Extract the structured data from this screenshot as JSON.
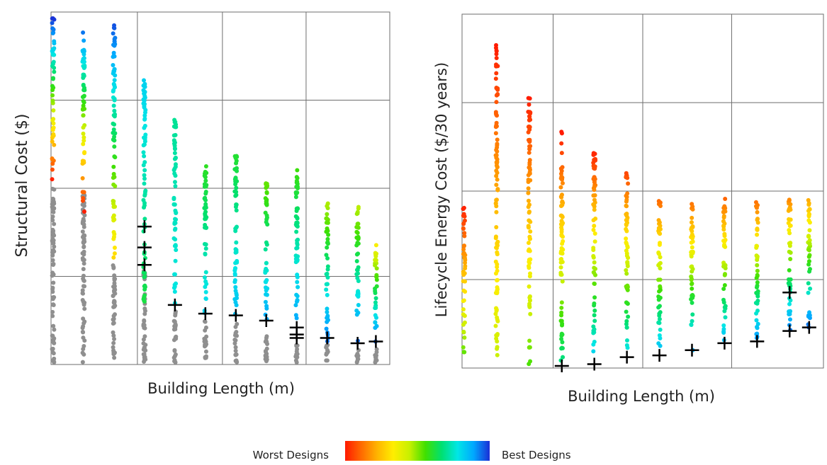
{
  "colors": {
    "worst": "#ff2a00",
    "best": "#1a2fd6",
    "excluded": "#8f8f8f",
    "grid": "#6e6e6e",
    "marker": "#000000"
  },
  "colormap": [
    "#ff1a00",
    "#ff6a00",
    "#ffb400",
    "#ffee00",
    "#c8f000",
    "#40e000",
    "#00e070",
    "#00e6e6",
    "#00a8ff",
    "#1a2fd6"
  ],
  "legend": {
    "worst_label": "Worst Designs",
    "best_label": "Best Designs"
  },
  "chart_data": [
    {
      "type": "scatter",
      "title": "",
      "xlabel": "Building Length (m)",
      "ylabel": "Structural Cost ($)",
      "grid": true,
      "x_categories": 11,
      "columns": [
        {
          "x": 1,
          "color_top": 1.0,
          "color_bottom": 0.0,
          "top": 0.99,
          "color_floor": 0.52,
          "bottom": 0.0,
          "gray_max": 0.5,
          "gray_min": 0.0,
          "markers": []
        },
        {
          "x": 2,
          "color_top": 0.94,
          "color_bottom": 0.0,
          "top": 0.95,
          "color_floor": 0.43,
          "bottom": 0.0,
          "gray_max": 0.5,
          "gray_min": 0.0,
          "markers": []
        },
        {
          "x": 3,
          "color_top": 0.97,
          "color_bottom": 0.28,
          "top": 0.97,
          "color_floor": 0.29,
          "bottom": 0.0,
          "gray_max": 0.28,
          "gray_min": 0.0,
          "markers": []
        },
        {
          "x": 4,
          "color_top": 0.82,
          "color_bottom": 0.62,
          "top": 0.82,
          "color_floor": 0.17,
          "bottom": 0.0,
          "gray_max": 0.27,
          "gray_min": 0.0,
          "markers": [
            0.39,
            0.33,
            0.28
          ]
        },
        {
          "x": 5,
          "color_top": 0.7,
          "color_bottom": 0.78,
          "top": 0.7,
          "color_floor": 0.17,
          "bottom": 0.0,
          "gray_max": 0.16,
          "gray_min": 0.0,
          "markers": [
            0.165
          ]
        },
        {
          "x": 6,
          "color_top": 0.58,
          "color_bottom": 0.82,
          "top": 0.58,
          "color_floor": 0.13,
          "bottom": 0.0,
          "gray_max": 0.12,
          "gray_min": 0.0,
          "markers": [
            0.14
          ]
        },
        {
          "x": 7,
          "color_top": 0.6,
          "color_bottom": 0.86,
          "top": 0.6,
          "color_floor": 0.12,
          "bottom": 0.0,
          "gray_max": 0.11,
          "gray_min": 0.0,
          "markers": [
            0.135
          ]
        },
        {
          "x": 8,
          "color_top": 0.52,
          "color_bottom": 0.9,
          "top": 0.52,
          "color_floor": 0.11,
          "bottom": 0.0,
          "gray_max": 0.1,
          "gray_min": 0.0,
          "markers": [
            0.12
          ]
        },
        {
          "x": 9,
          "color_top": 0.56,
          "color_bottom": 0.92,
          "top": 0.56,
          "color_floor": 0.07,
          "bottom": 0.0,
          "gray_max": 0.06,
          "gray_min": 0.0,
          "markers": [
            0.1,
            0.08,
            0.07
          ]
        },
        {
          "x": 10,
          "color_top": 0.46,
          "color_bottom": 0.94,
          "top": 0.46,
          "color_floor": 0.06,
          "bottom": 0.0,
          "gray_max": 0.05,
          "gray_min": 0.0,
          "markers": [
            0.07
          ]
        },
        {
          "x": 11,
          "color_top": 0.45,
          "color_bottom": 0.96,
          "top": 0.45,
          "color_floor": 0.05,
          "bottom": 0.0,
          "gray_max": 0.04,
          "gray_min": 0.0,
          "markers": [
            0.055
          ]
        },
        {
          "x": 11.6,
          "color_top": 0.34,
          "color_bottom": 0.97,
          "top": 0.34,
          "color_floor": 0.05,
          "bottom": 0.0,
          "gray_max": 0.04,
          "gray_min": 0.0,
          "markers": [
            0.06
          ]
        }
      ]
    },
    {
      "type": "scatter",
      "title": "",
      "xlabel": "Building Length (m)",
      "ylabel": "Lifecycle Energy Cost ($/30 years)",
      "grid": true,
      "x_categories": 11,
      "columns": [
        {
          "x": 1,
          "color_top": 0.0,
          "color_bottom": 0.55,
          "top": 0.46,
          "color_floor": 0.02,
          "bottom": 0.02,
          "gray_max": -1,
          "gray_min": -1,
          "markers": []
        },
        {
          "x": 2,
          "color_top": 0.0,
          "color_bottom": 0.45,
          "top": 0.92,
          "color_floor": 0.01,
          "bottom": 0.01,
          "gray_max": -1,
          "gray_min": -1,
          "markers": []
        },
        {
          "x": 3,
          "color_top": 0.0,
          "color_bottom": 0.55,
          "top": 0.77,
          "color_floor": 0.0,
          "bottom": 0.0,
          "gray_max": -1,
          "gray_min": -1,
          "markers": []
        },
        {
          "x": 4,
          "color_top": 0.0,
          "color_bottom": 0.7,
          "top": 0.67,
          "color_floor": 0.0,
          "bottom": 0.0,
          "gray_max": -1,
          "gray_min": -1,
          "markers": [
            -0.005
          ]
        },
        {
          "x": 5,
          "color_top": 0.0,
          "color_bottom": 0.85,
          "top": 0.62,
          "color_floor": 0.01,
          "bottom": 0.01,
          "gray_max": -1,
          "gray_min": -1,
          "markers": [
            0.005
          ]
        },
        {
          "x": 6,
          "color_top": 0.05,
          "color_bottom": 0.8,
          "top": 0.56,
          "color_floor": 0.03,
          "bottom": 0.03,
          "gray_max": -1,
          "gray_min": -1,
          "markers": [
            0.025
          ]
        },
        {
          "x": 7,
          "color_top": 0.1,
          "color_bottom": 0.86,
          "top": 0.48,
          "color_floor": 0.04,
          "bottom": 0.04,
          "gray_max": -1,
          "gray_min": -1,
          "markers": [
            0.03
          ]
        },
        {
          "x": 8,
          "color_top": 0.1,
          "color_bottom": 0.88,
          "top": 0.48,
          "color_floor": 0.04,
          "bottom": 0.04,
          "gray_max": -1,
          "gray_min": -1,
          "markers": [
            0.045
          ]
        },
        {
          "x": 9,
          "color_top": 0.1,
          "color_bottom": 0.9,
          "top": 0.48,
          "color_floor": 0.05,
          "bottom": 0.05,
          "gray_max": -1,
          "gray_min": -1,
          "markers": [
            0.065
          ]
        },
        {
          "x": 10,
          "color_top": 0.1,
          "color_bottom": 0.92,
          "top": 0.48,
          "color_floor": 0.07,
          "bottom": 0.07,
          "gray_max": -1,
          "gray_min": -1,
          "markers": [
            0.07
          ]
        },
        {
          "x": 11,
          "color_top": 0.15,
          "color_bottom": 0.96,
          "top": 0.48,
          "color_floor": 0.09,
          "bottom": 0.09,
          "gray_max": -1,
          "gray_min": -1,
          "markers": [
            0.21,
            0.1
          ]
        },
        {
          "x": 11.6,
          "color_top": 0.2,
          "color_bottom": 0.97,
          "top": 0.48,
          "color_floor": 0.1,
          "bottom": 0.1,
          "gray_max": -1,
          "gray_min": -1,
          "markers": [
            0.11
          ]
        }
      ]
    }
  ]
}
